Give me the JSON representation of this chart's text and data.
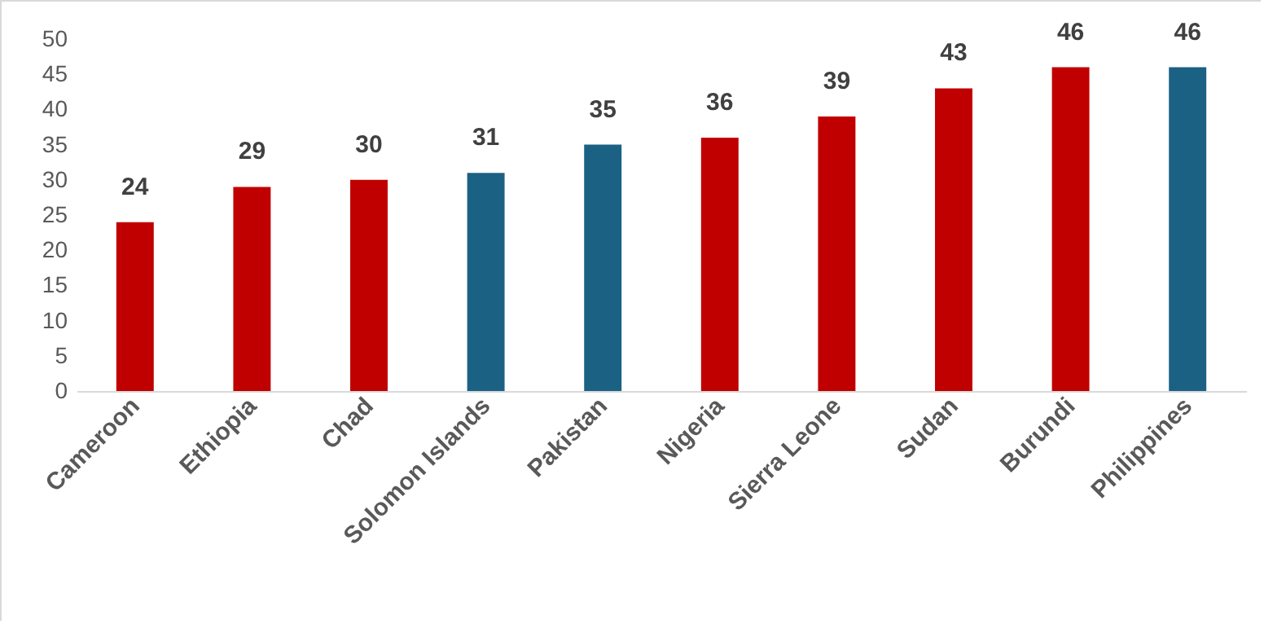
{
  "chart_data": {
    "type": "bar",
    "categories": [
      "Cameroon",
      "Ethiopia",
      "Chad",
      "Solomon Islands",
      "Pakistan",
      "Nigeria",
      "Sierra Leone",
      "Sudan",
      "Burundi",
      "Philippines"
    ],
    "values": [
      24,
      29,
      30,
      31,
      35,
      36,
      39,
      43,
      46,
      46
    ],
    "colors": [
      "#c00000",
      "#c00000",
      "#c00000",
      "#1b6183",
      "#1b6183",
      "#c00000",
      "#c00000",
      "#c00000",
      "#c00000",
      "#1b6183"
    ],
    "ylim": [
      0,
      50
    ],
    "yticks": [
      0,
      5,
      10,
      15,
      20,
      25,
      30,
      35,
      40,
      45,
      50
    ],
    "grid": false,
    "data_labels": true
  }
}
